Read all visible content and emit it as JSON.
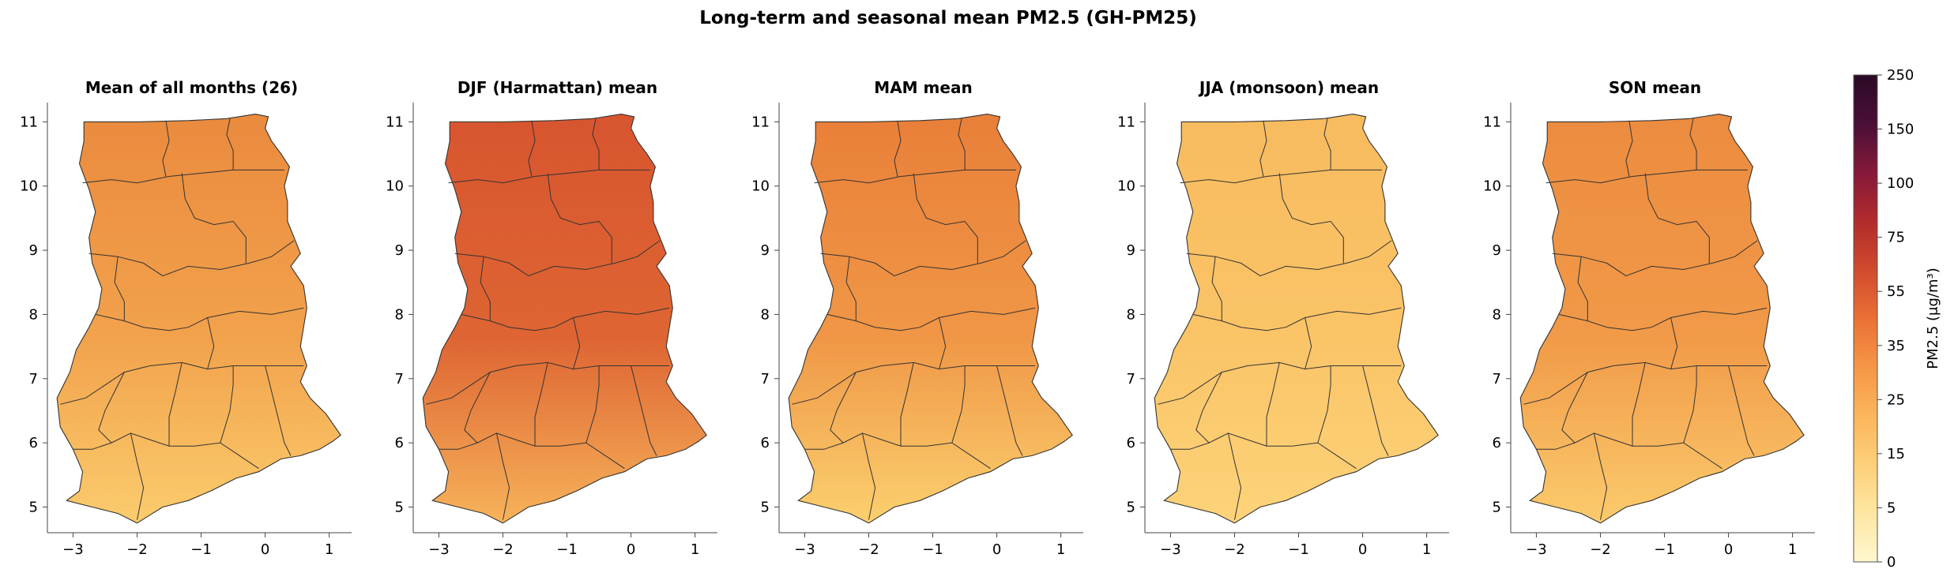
{
  "figure": {
    "title": "Long-term and seasonal mean PM2.5 (GH-PM25)"
  },
  "panels": [
    {
      "title": "Mean of all months (26)",
      "fill_top": "#ea8a3e",
      "fill_mid": "#f2a24c",
      "fill_bottom": "#fbcc6d"
    },
    {
      "title": "DJF (Harmattan) mean",
      "fill_top": "#d8552f",
      "fill_mid": "#de6533",
      "fill_bottom": "#f7b35a"
    },
    {
      "title": "MAM mean",
      "fill_top": "#e97f39",
      "fill_mid": "#f09746",
      "fill_bottom": "#fbd06f"
    },
    {
      "title": "JJA (monsoon) mean",
      "fill_top": "#f8bb5f",
      "fill_mid": "#fac467",
      "fill_bottom": "#fdd37a"
    },
    {
      "title": "SON mean",
      "fill_top": "#ec8b3f",
      "fill_mid": "#f19a48",
      "fill_bottom": "#fbcb6c"
    }
  ],
  "axes": {
    "x_ticks": [
      "−3",
      "−2",
      "−1",
      "0",
      "1"
    ],
    "y_ticks": [
      "5",
      "6",
      "7",
      "8",
      "9",
      "10",
      "11"
    ],
    "x_range": [
      -3.4,
      1.35
    ],
    "y_range": [
      4.6,
      11.3
    ]
  },
  "colorbar": {
    "label": "PM2.5 (μg/m³)",
    "ticks": [
      "0",
      "5",
      "15",
      "25",
      "35",
      "55",
      "75",
      "100",
      "150",
      "250"
    ],
    "colors": [
      "#fff7cf",
      "#fee7a2",
      "#fdd07a",
      "#fbb55c",
      "#f59647",
      "#ea7035",
      "#d04a2d",
      "#b12b2c",
      "#85193a",
      "#4a0f36",
      "#2a0a26"
    ]
  }
}
